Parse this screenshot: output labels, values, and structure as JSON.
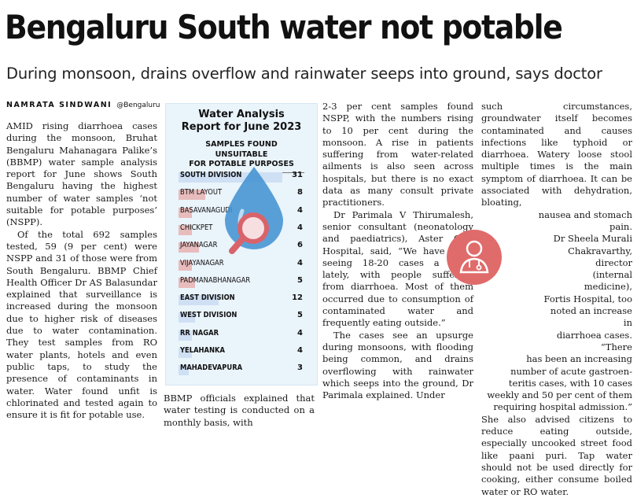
{
  "article": {
    "headline": "Bengaluru South water not potable",
    "subheadline": "During monsoon, drains overflow and rainwater seeps into ground, says doctor",
    "byline": {
      "name": "NAMRATA SINDWANI",
      "location": "@Bengaluru"
    }
  },
  "infographic": {
    "title_line1": "Water Analysis",
    "title_line2": "Report for June 2023",
    "subtitle_line1": "SAMPLES FOUND UNSUITABLE",
    "subtitle_line2": "FOR POTABLE PURPOSES",
    "colors": {
      "division_bar": "#cfe0f5",
      "subdivision_bar": "#e8bcbc",
      "background": "#eaf4fb",
      "drop": "#3f8fd0",
      "magnifier": "#d9636b"
    },
    "icons": [
      "water-drop-icon",
      "magnifying-glass-icon"
    ]
  },
  "chart_data": {
    "type": "bar",
    "categories": [
      "SOUTH DIVISION",
      "BTM LAYOUT",
      "BASAVANAGUDI",
      "CHICKPET",
      "JAYANAGAR",
      "VIJAYANAGAR",
      "PADMANABHANAGAR",
      "EAST DIVISION",
      "WEST DIVISION",
      "RR NAGAR",
      "YELAHANKA",
      "MAHADEVAPURA"
    ],
    "values": [
      31,
      8,
      4,
      4,
      6,
      4,
      5,
      12,
      5,
      4,
      4,
      3
    ],
    "highlighted": [
      true,
      false,
      false,
      false,
      false,
      false,
      false,
      true,
      true,
      true,
      true,
      true
    ],
    "title": "Water Analysis Report for June 2023",
    "subtitle": "SAMPLES FOUND UNSUITABLE FOR POTABLE PURPOSES",
    "xlabel": "",
    "ylabel": "",
    "xlim": [
      0,
      31
    ]
  },
  "columns": {
    "col1": [
      "AMID rising diarrhoea cases during the monsoon, Bruhat Bengaluru Mahanagara Palike’s (BBMP) water sample analysis report for June shows South Bengaluru having the highest number of water samples ‘not suitable for potable purposes’ (NSPP).",
      "Of the total 692 samples tested, 59 (9 per cent) were NSPP and 31 of those were from South Bengaluru. BBMP Chief Health Officer Dr AS Balasundar explained that surveillance is increased during the monsoon due to higher risk of diseases due to water contamination. They test samples from RO water plants, hotels and even public taps, to study the presence of contaminants in water. Water found unfit is chlorinated and tested again to ensure it is fit for potable use."
    ],
    "col2": [
      "BBMP officials explained that water testing is conducted on a monthly basis, with"
    ],
    "col3": [
      "2-3 per cent samples found NSPP, with the numbers rising to 10 per cent during the monsoon. A rise in patients suffering from water-related ailments is also seen across hospitals, but there is no exact data as many consult private practitioners.",
      "Dr Parimala V Thirumalesh, senior consultant (neonatology and paediatrics), Aster CMI Hospital, said, “We have been seeing 18-20 cases a week lately, with people suffering from diarrhoea. Most of them occurred due to consumption of contaminated water and frequently eating outside.”",
      "The cases see an upsurge during monsoons, with flooding being common, and drains overflowing with rainwater which seeps into the ground, Dr Parimala explained. Under"
    ],
    "col4_top": "such circumstances, groundwater itself becomes contaminated and causes infections like typhoid or diarrhoea. Watery loose stool multiple times is the main symptom of diarrhoea. It can be associated with dehydration, bloating,",
    "col4_lines": [
      "nausea and stomach pain.",
      "Dr Sheela Murali",
      "Chakravarthy, director",
      "(internal medicine),",
      "Fortis Hospital, too",
      "noted an increase in",
      "diarrhoea cases. “There",
      "has been an increasing",
      "number of acute gastroen-",
      "teritis cases, with 10 cases",
      "weekly and 50 per cent of them",
      "requiring hospital admission.”"
    ],
    "col4_bottom": "She also advised citizens to reduce eating outside, especially uncooked street food like paani puri. Tap water should not be used directly for cooking, either consume boiled water or RO water."
  },
  "badge": {
    "icon": "doctor-icon",
    "color": "#e06b6b"
  }
}
